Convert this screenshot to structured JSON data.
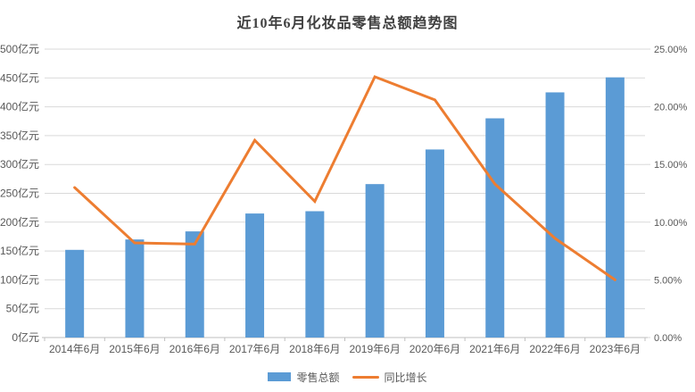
{
  "page": {
    "background": "#ffffff"
  },
  "chart_data": {
    "type": "bar+line",
    "title": "近10年6月化妆品零售总额趋势图",
    "categories": [
      "2014年6月",
      "2015年6月",
      "2016年6月",
      "2017年6月",
      "2018年6月",
      "2019年6月",
      "2020年6月",
      "2021年6月",
      "2022年6月",
      "2023年6月"
    ],
    "series": [
      {
        "name": "零售总额",
        "type": "bar",
        "axis": "left",
        "unit": "亿元",
        "color": "#5B9BD5",
        "values": [
          152,
          170,
          184,
          215,
          219,
          266,
          326,
          380,
          425,
          451
        ]
      },
      {
        "name": "同比增长",
        "type": "line",
        "axis": "right",
        "unit": "percent",
        "color": "#ED7D31",
        "values": [
          13.0,
          8.2,
          8.1,
          17.1,
          11.8,
          22.6,
          20.6,
          13.3,
          8.6,
          5.0
        ]
      }
    ],
    "left_axis": {
      "min": 0,
      "max": 500,
      "step": 50,
      "unit_suffix": "亿元",
      "tick_labels": [
        "0亿元",
        "50亿元",
        "100亿元",
        "150亿元",
        "200亿元",
        "250亿元",
        "300亿元",
        "350亿元",
        "400亿元",
        "450亿元",
        "500亿元"
      ]
    },
    "right_axis": {
      "min": 0,
      "max": 25,
      "step": 5,
      "unit_suffix": "%",
      "tick_labels": [
        "0.00%",
        "5.00%",
        "10.00%",
        "15.00%",
        "20.00%",
        "25.00%"
      ]
    },
    "grid": true,
    "legend_position": "bottom",
    "colors": {
      "grid": "#D9D9D9",
      "axis_line": "#BFBFBF",
      "tick_text": "#595959",
      "title_text": "#404040"
    }
  }
}
